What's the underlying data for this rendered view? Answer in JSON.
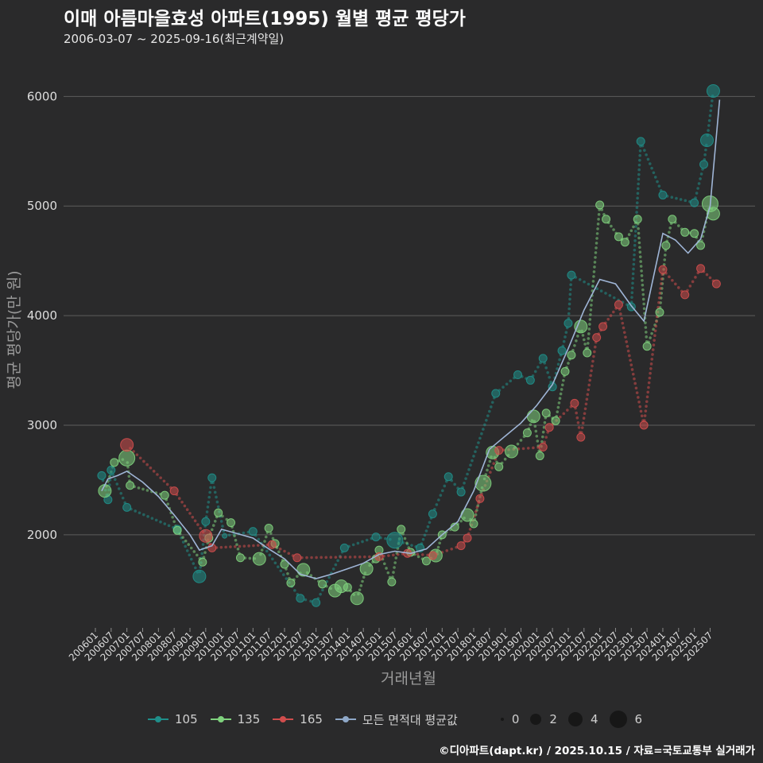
{
  "header": {
    "title": "이매 아름마을효성 아파트(1995) 월별 평균 평당가",
    "subtitle": "2006-03-07 ~ 2025-09-16(최근계약일)"
  },
  "caption": "©디아파트(dapt.kr) / 2025.10.15 / 자료=국토교통부 실거래가",
  "chart_data": {
    "type": "scatter",
    "title": "이매 아름마을효성 아파트(1995) 월별 평균 평당가",
    "xlabel": "거래년월",
    "ylabel": "평균 평당가(만 원)",
    "ylim": [
      1150,
      6300
    ],
    "y_ticks": [
      2000,
      3000,
      4000,
      5000,
      6000
    ],
    "x_range": [
      2006.0,
      2025.917
    ],
    "x_tick_labels": [
      "200601",
      "200607",
      "200701",
      "200707",
      "200801",
      "200807",
      "200901",
      "200907",
      "201001",
      "201007",
      "201101",
      "201107",
      "201201",
      "201207",
      "201301",
      "201307",
      "201401",
      "201407",
      "201501",
      "201507",
      "201601",
      "201607",
      "201701",
      "201707",
      "201801",
      "201807",
      "201901",
      "201907",
      "202001",
      "202007",
      "202101",
      "202107",
      "202201",
      "202207",
      "202301",
      "202307",
      "202401",
      "202407",
      "202501",
      "202507"
    ],
    "legend_series": [
      "105",
      "135",
      "165",
      "모든 면적대 평균값"
    ],
    "size_legend": [
      "0",
      "2",
      "4",
      "6"
    ],
    "series": [
      {
        "name": "105",
        "color": "#1f8f8a",
        "points": [
          [
            2006.2,
            2540,
            2
          ],
          [
            2006.4,
            2320,
            2
          ],
          [
            2006.5,
            2590,
            2
          ],
          [
            2007.0,
            2250,
            2
          ],
          [
            2008.6,
            2050,
            2
          ],
          [
            2009.3,
            1620,
            3
          ],
          [
            2009.5,
            2120,
            2
          ],
          [
            2009.7,
            2520,
            2
          ],
          [
            2010.1,
            1990,
            1
          ],
          [
            2011.0,
            2030,
            2
          ],
          [
            2012.5,
            1420,
            2
          ],
          [
            2013.0,
            1380,
            2
          ],
          [
            2013.9,
            1880,
            2
          ],
          [
            2014.9,
            1980,
            2
          ],
          [
            2015.5,
            1950,
            4
          ],
          [
            2016.3,
            1880,
            2
          ],
          [
            2016.7,
            2190,
            2
          ],
          [
            2017.2,
            2530,
            2
          ],
          [
            2017.6,
            2390,
            2
          ],
          [
            2018.7,
            3290,
            2
          ],
          [
            2019.4,
            3460,
            2
          ],
          [
            2019.8,
            3410,
            2
          ],
          [
            2020.2,
            3610,
            2
          ],
          [
            2020.5,
            3350,
            2
          ],
          [
            2020.8,
            3680,
            2
          ],
          [
            2021.0,
            3930,
            2
          ],
          [
            2021.1,
            4370,
            2
          ],
          [
            2023.0,
            4080,
            2
          ],
          [
            2023.3,
            5590,
            2
          ],
          [
            2024.0,
            5100,
            2
          ],
          [
            2025.0,
            5030,
            2
          ],
          [
            2025.3,
            5380,
            2
          ],
          [
            2025.4,
            5600,
            3
          ],
          [
            2025.6,
            6050,
            3
          ]
        ]
      },
      {
        "name": "135",
        "color": "#7fd17d",
        "points": [
          [
            2006.3,
            2400,
            3
          ],
          [
            2006.6,
            2660,
            2
          ],
          [
            2007.0,
            2700,
            4
          ],
          [
            2007.1,
            2450,
            2
          ],
          [
            2008.2,
            2360,
            2
          ],
          [
            2008.6,
            2040,
            2
          ],
          [
            2009.4,
            1750,
            2
          ],
          [
            2009.6,
            1970,
            2
          ],
          [
            2009.9,
            2200,
            2
          ],
          [
            2010.3,
            2110,
            2
          ],
          [
            2010.6,
            1790,
            2
          ],
          [
            2011.2,
            1780,
            3
          ],
          [
            2011.5,
            2060,
            2
          ],
          [
            2011.7,
            1920,
            2
          ],
          [
            2012.0,
            1730,
            2
          ],
          [
            2012.2,
            1560,
            2
          ],
          [
            2012.6,
            1680,
            3
          ],
          [
            2013.2,
            1550,
            2
          ],
          [
            2013.6,
            1490,
            3
          ],
          [
            2013.8,
            1530,
            3
          ],
          [
            2014.0,
            1520,
            2
          ],
          [
            2014.3,
            1420,
            3
          ],
          [
            2014.6,
            1690,
            3
          ],
          [
            2014.9,
            1780,
            2
          ],
          [
            2015.0,
            1860,
            2
          ],
          [
            2015.4,
            1570,
            2
          ],
          [
            2015.7,
            2050,
            2
          ],
          [
            2016.0,
            1840,
            2
          ],
          [
            2016.5,
            1760,
            2
          ],
          [
            2016.8,
            1810,
            3
          ],
          [
            2017.0,
            2000,
            2
          ],
          [
            2017.4,
            2070,
            2
          ],
          [
            2017.8,
            2180,
            3
          ],
          [
            2018.0,
            2100,
            2
          ],
          [
            2018.3,
            2470,
            4
          ],
          [
            2018.6,
            2750,
            3
          ],
          [
            2018.8,
            2620,
            2
          ],
          [
            2019.2,
            2760,
            3
          ],
          [
            2019.7,
            2930,
            2
          ],
          [
            2019.9,
            3080,
            3
          ],
          [
            2020.1,
            2720,
            2
          ],
          [
            2020.3,
            3110,
            2
          ],
          [
            2020.6,
            3040,
            2
          ],
          [
            2020.9,
            3490,
            2
          ],
          [
            2021.1,
            3640,
            2
          ],
          [
            2021.4,
            3900,
            3
          ],
          [
            2021.6,
            3660,
            2
          ],
          [
            2022.0,
            5010,
            2
          ],
          [
            2022.2,
            4880,
            2
          ],
          [
            2022.6,
            4720,
            2
          ],
          [
            2022.8,
            4670,
            2
          ],
          [
            2023.2,
            4880,
            2
          ],
          [
            2023.5,
            3720,
            2
          ],
          [
            2023.9,
            4030,
            2
          ],
          [
            2024.1,
            4640,
            2
          ],
          [
            2024.3,
            4880,
            2
          ],
          [
            2024.7,
            4760,
            2
          ],
          [
            2025.0,
            4750,
            2
          ],
          [
            2025.2,
            4640,
            2
          ],
          [
            2025.5,
            5020,
            4
          ],
          [
            2025.6,
            4930,
            3
          ]
        ]
      },
      {
        "name": "165",
        "color": "#d04d4d",
        "points": [
          [
            2007.0,
            2820,
            3
          ],
          [
            2008.5,
            2400,
            2
          ],
          [
            2009.5,
            1990,
            3
          ],
          [
            2009.7,
            1880,
            2
          ],
          [
            2011.6,
            1910,
            2
          ],
          [
            2012.4,
            1790,
            2
          ],
          [
            2015.0,
            1800,
            2
          ],
          [
            2015.9,
            1830,
            2
          ],
          [
            2016.7,
            1810,
            2
          ],
          [
            2017.6,
            1900,
            2
          ],
          [
            2017.8,
            1970,
            2
          ],
          [
            2018.2,
            2330,
            2
          ],
          [
            2018.8,
            2770,
            2
          ],
          [
            2020.2,
            2800,
            2
          ],
          [
            2020.4,
            2980,
            2
          ],
          [
            2021.2,
            3200,
            2
          ],
          [
            2021.4,
            2890,
            2
          ],
          [
            2021.9,
            3800,
            2
          ],
          [
            2022.1,
            3900,
            2
          ],
          [
            2022.6,
            4100,
            2
          ],
          [
            2023.4,
            3000,
            2
          ],
          [
            2024.0,
            4420,
            2
          ],
          [
            2024.7,
            4190,
            2
          ],
          [
            2025.2,
            4430,
            2
          ],
          [
            2025.7,
            4290,
            2
          ]
        ]
      }
    ],
    "average_line": [
      [
        2006.2,
        2400
      ],
      [
        2006.4,
        2510
      ],
      [
        2006.7,
        2540
      ],
      [
        2007.0,
        2580
      ],
      [
        2007.5,
        2480
      ],
      [
        2008.0,
        2350
      ],
      [
        2008.5,
        2180
      ],
      [
        2009.0,
        2000
      ],
      [
        2009.3,
        1860
      ],
      [
        2009.7,
        1900
      ],
      [
        2010.0,
        2050
      ],
      [
        2010.5,
        2010
      ],
      [
        2011.0,
        1970
      ],
      [
        2011.5,
        1870
      ],
      [
        2012.0,
        1780
      ],
      [
        2012.5,
        1640
      ],
      [
        2013.0,
        1600
      ],
      [
        2013.5,
        1640
      ],
      [
        2014.0,
        1690
      ],
      [
        2014.5,
        1740
      ],
      [
        2015.0,
        1820
      ],
      [
        2015.5,
        1850
      ],
      [
        2016.0,
        1830
      ],
      [
        2016.5,
        1870
      ],
      [
        2017.0,
        2000
      ],
      [
        2017.5,
        2120
      ],
      [
        2018.0,
        2400
      ],
      [
        2018.5,
        2780
      ],
      [
        2019.0,
        2900
      ],
      [
        2019.5,
        3020
      ],
      [
        2020.0,
        3180
      ],
      [
        2020.5,
        3370
      ],
      [
        2021.0,
        3700
      ],
      [
        2021.5,
        4050
      ],
      [
        2022.0,
        4330
      ],
      [
        2022.5,
        4290
      ],
      [
        2023.0,
        4090
      ],
      [
        2023.4,
        3950
      ],
      [
        2023.7,
        4350
      ],
      [
        2024.0,
        4750
      ],
      [
        2024.4,
        4690
      ],
      [
        2024.8,
        4570
      ],
      [
        2025.2,
        4700
      ],
      [
        2025.5,
        5000
      ],
      [
        2025.8,
        5970
      ]
    ]
  }
}
